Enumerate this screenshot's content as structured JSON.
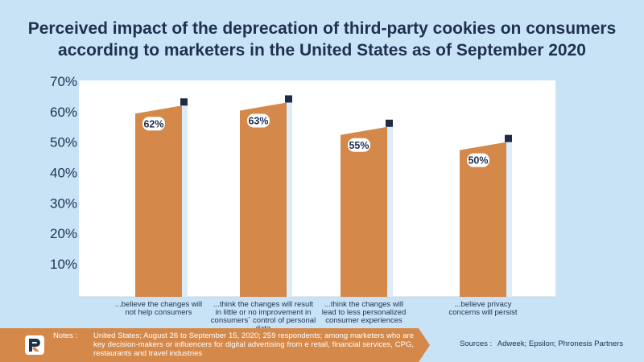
{
  "chart_data": {
    "type": "bar",
    "title": "Perceived impact of the deprecation of third-party cookies on consumers according to marketers in the United States as of September 2020",
    "title_lines": [
      "Perceived impact of the deprecation of third-party cookies on consumers",
      "according to marketers in the United States as of September 2020"
    ],
    "categories": [
      "...believe the changes will not help consumers",
      "...think the changes will result in little or no improvement in consumers´ control of personal data",
      "...think the changes will lead to less personalized consumer experiences",
      "...believe privacy concerns will persist"
    ],
    "category_lines": [
      [
        "...believe the changes will",
        "not help consumers"
      ],
      [
        "...think the changes will result",
        "in little or no improvement in",
        "consumers´ control of personal",
        "data"
      ],
      [
        "...think the changes will",
        "lead to less personalized",
        "consumer experiences"
      ],
      [
        "...believe privacy",
        "concerns will persist"
      ]
    ],
    "values": [
      62,
      63,
      55,
      50
    ],
    "data_labels": [
      "62%",
      "63%",
      "55%",
      "50%"
    ],
    "ylim": [
      0,
      70
    ],
    "yticks": [
      "10%",
      "20%",
      "30%",
      "40%",
      "50%",
      "60%",
      "70%"
    ],
    "ytick_values": [
      10,
      20,
      30,
      40,
      50,
      60,
      70
    ],
    "grid": false,
    "colors": {
      "bar_front": "#d4894b",
      "bar_side": "#dcecf9",
      "marker": "#1f2a44",
      "plot_bg": "#ffffff",
      "page_bg": "#c9e3f6",
      "text": "#1f3050"
    }
  },
  "footer": {
    "notes_key": "Notes :",
    "notes_text": "United States; August 26 to September 15, 2020; 259 respondents; among marketers who are key decision-makers or influencers for digital advertising from e retail, financial services, CPG, restaurants and travel industries",
    "sources_key": "Sources :",
    "sources_text": "Adweek; Epsilon; Phronesis Partners",
    "logo": "phronesis-logo-icon"
  }
}
